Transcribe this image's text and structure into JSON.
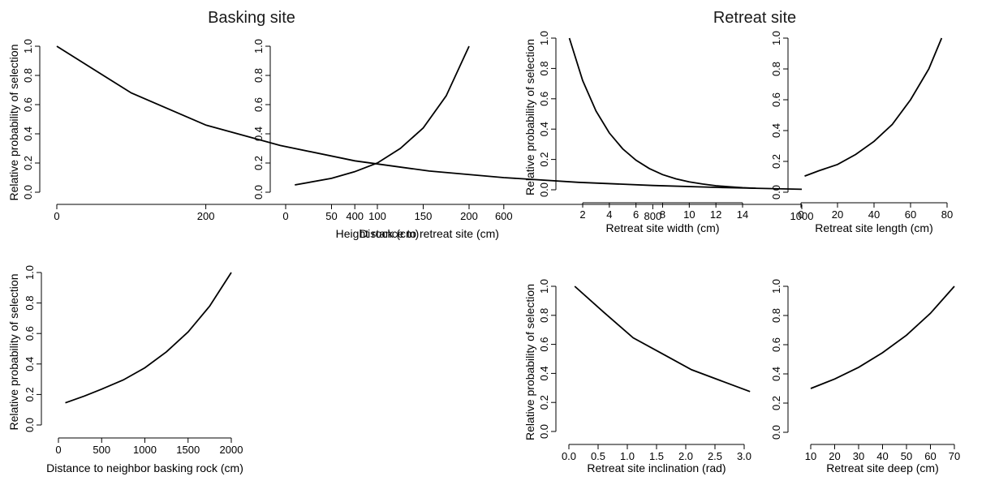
{
  "figure": {
    "group_titles": [
      {
        "id": "basking",
        "text": "Basking site"
      },
      {
        "id": "retreat",
        "text": "Retreat site"
      }
    ]
  },
  "chart_data": [
    {
      "type": "line",
      "group": "basking",
      "xlabel": "Distance to retreat site (cm)",
      "ylabel": "Relative probability of selection",
      "xlim": [
        0,
        1000
      ],
      "ylim": [
        0,
        1
      ],
      "xticks": [
        0,
        200,
        400,
        600,
        800,
        1000
      ],
      "yticks": [
        0.0,
        0.2,
        0.4,
        0.6,
        0.8,
        1.0
      ],
      "series": [
        {
          "x": [
            0,
            100,
            200,
            300,
            400,
            500,
            600,
            700,
            800,
            900,
            1000
          ],
          "y": [
            1.0,
            0.68,
            0.46,
            0.32,
            0.215,
            0.145,
            0.1,
            0.068,
            0.046,
            0.031,
            0.02
          ]
        }
      ]
    },
    {
      "type": "line",
      "group": "basking",
      "xlabel": "Height rock (cm)",
      "ylabel": "",
      "xlim": [
        10,
        200
      ],
      "ylim": [
        0,
        1
      ],
      "xticks": [
        0,
        50,
        100,
        150,
        200
      ],
      "yticks": [
        0.0,
        0.2,
        0.4,
        0.6,
        0.8,
        1.0
      ],
      "series": [
        {
          "x": [
            10,
            50,
            75,
            100,
            125,
            150,
            175,
            200
          ],
          "y": [
            0.05,
            0.095,
            0.14,
            0.2,
            0.3,
            0.44,
            0.66,
            1.0
          ]
        }
      ]
    },
    {
      "type": "line",
      "group": "retreat",
      "xlabel": "Retreat site width (cm)",
      "ylabel": "Relative probability of selection",
      "xlim": [
        1,
        15
      ],
      "ylim": [
        0,
        1
      ],
      "xticks": [
        2,
        4,
        6,
        8,
        10,
        12,
        14
      ],
      "yticks": [
        0.0,
        0.2,
        0.4,
        0.6,
        0.8,
        1.0
      ],
      "series": [
        {
          "x": [
            1,
            2,
            3,
            4,
            5,
            6,
            7,
            8,
            9,
            10,
            11,
            12,
            13,
            14,
            15
          ],
          "y": [
            1.0,
            0.72,
            0.52,
            0.375,
            0.27,
            0.195,
            0.14,
            0.1,
            0.072,
            0.052,
            0.038,
            0.027,
            0.02,
            0.014,
            0.01
          ]
        }
      ]
    },
    {
      "type": "line",
      "group": "retreat",
      "xlabel": "Retreat site length (cm)",
      "ylabel": "",
      "xlim": [
        2,
        77
      ],
      "ylim": [
        0,
        1
      ],
      "xticks": [
        0,
        20,
        40,
        60,
        80
      ],
      "yticks": [
        0.0,
        0.2,
        0.4,
        0.6,
        0.8,
        1.0
      ],
      "series": [
        {
          "x": [
            2,
            10,
            20,
            30,
            40,
            50,
            60,
            70,
            77
          ],
          "y": [
            0.105,
            0.14,
            0.18,
            0.245,
            0.33,
            0.44,
            0.6,
            0.8,
            1.0
          ]
        }
      ]
    },
    {
      "type": "line",
      "group": "basking",
      "xlabel": "Distance to neighbor basking rock (cm)",
      "ylabel": "Relative probability of selection",
      "xlim": [
        80,
        2000
      ],
      "ylim": [
        0,
        1
      ],
      "xticks": [
        0,
        500,
        1000,
        1500,
        2000
      ],
      "yticks": [
        0.0,
        0.2,
        0.4,
        0.6,
        0.8,
        1.0
      ],
      "series": [
        {
          "x": [
            80,
            300,
            500,
            750,
            1000,
            1250,
            1500,
            1750,
            2000
          ],
          "y": [
            0.145,
            0.19,
            0.235,
            0.295,
            0.375,
            0.48,
            0.61,
            0.78,
            1.0
          ]
        }
      ]
    },
    {
      "type": "line",
      "group": "retreat",
      "xlabel": "Retreat site inclination (rad)",
      "ylabel": "Relative probability of selection",
      "xlim": [
        0,
        3.14
      ],
      "ylim": [
        0,
        1
      ],
      "xticks": [
        0.0,
        0.5,
        1.0,
        1.5,
        2.0,
        2.5,
        3.0
      ],
      "yticks": [
        0.0,
        0.2,
        0.4,
        0.6,
        0.8,
        1.0
      ],
      "series": [
        {
          "x": [
            0.1,
            0.6,
            1.1,
            1.6,
            2.1,
            2.6,
            3.1
          ],
          "y": [
            1.0,
            0.82,
            0.645,
            0.535,
            0.425,
            0.35,
            0.275
          ]
        }
      ]
    },
    {
      "type": "line",
      "group": "retreat",
      "xlabel": "Retreat site deep (cm)",
      "ylabel": "",
      "xlim": [
        10,
        70
      ],
      "ylim": [
        0,
        1
      ],
      "xticks": [
        10,
        20,
        30,
        40,
        50,
        60,
        70
      ],
      "yticks": [
        0.0,
        0.2,
        0.4,
        0.6,
        0.8,
        1.0
      ],
      "series": [
        {
          "x": [
            10,
            20,
            30,
            40,
            50,
            60,
            70
          ],
          "y": [
            0.3,
            0.365,
            0.445,
            0.545,
            0.665,
            0.815,
            1.0
          ]
        }
      ]
    }
  ]
}
